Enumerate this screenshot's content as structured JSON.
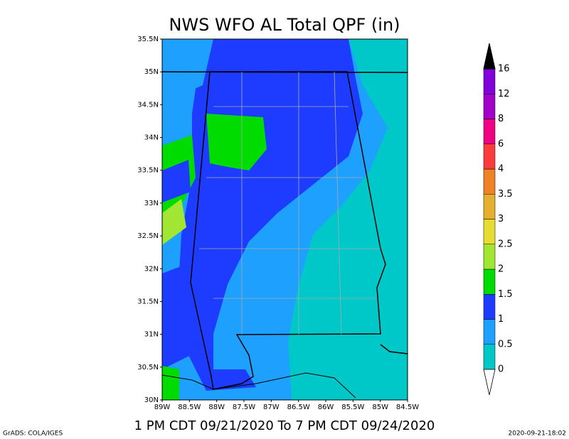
{
  "title": "NWS WFO AL Total QPF (in)",
  "subtitle": "1 PM CDT 09/21/2020 To 7 PM CDT 09/24/2020",
  "footer_left": "GrADS: COLA/IGES",
  "footer_right": "2020-09-21-18:02",
  "map": {
    "lat_labels": [
      "35.5N",
      "35N",
      "34.5N",
      "34N",
      "33.5N",
      "33N",
      "32.5N",
      "32N",
      "31.5N",
      "31N",
      "30.5N",
      "30N"
    ],
    "lon_labels": [
      "89W",
      "88.5W",
      "88W",
      "87.5W",
      "87W",
      "86.5W",
      "86W",
      "85.5W",
      "85W",
      "84.5W"
    ]
  },
  "colorbar": {
    "levels": [
      0,
      0.5,
      1,
      1.5,
      2,
      2.5,
      3,
      3.5,
      4,
      6,
      8,
      12,
      16
    ],
    "colors": [
      "#00c8c8",
      "#1ea0ff",
      "#1e3cff",
      "#00dc00",
      "#a0e632",
      "#e6dc32",
      "#e6af2d",
      "#f08228",
      "#fa3c3c",
      "#f00082",
      "#a000c8",
      "#8200dc"
    ],
    "under_color": "#ffffff",
    "over_color": "#000000"
  }
}
